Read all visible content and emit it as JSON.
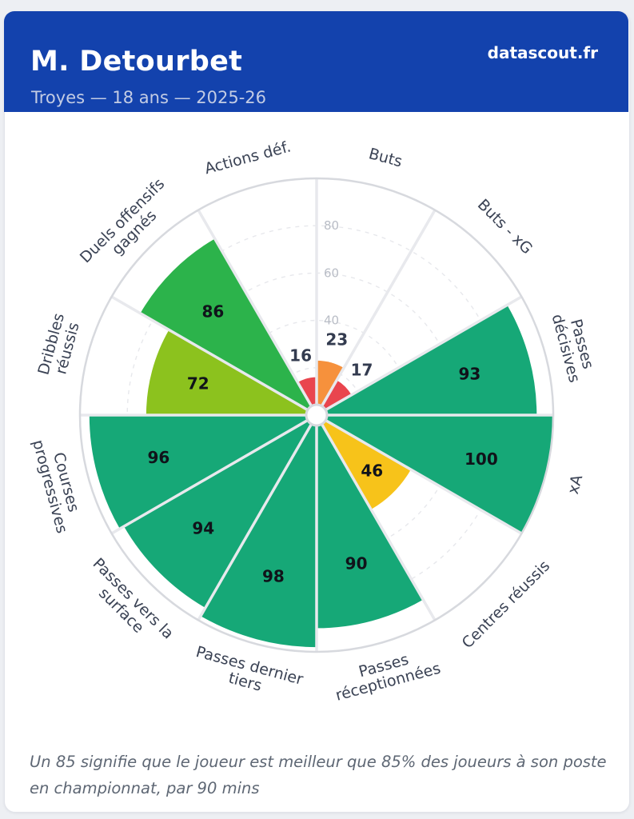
{
  "header": {
    "title": "M. Detourbet",
    "subtitle": "Troyes — 18 ans — 2025-26",
    "brand": "datascout.fr",
    "background_color": "#1342ad"
  },
  "footer": {
    "note": "Un 85 signifie que le joueur est meilleur que 85% des joueurs à son poste en championnat, par 90 mins"
  },
  "chart_data": {
    "type": "pizza",
    "description": "Percentile pizza (polar bar) chart with 12 equal 30-degree sectors, radial scale 0-100, grid dashed, no legend",
    "axis_max": 100,
    "tick_labels": [
      40,
      60,
      80
    ],
    "grid_rings": [
      20,
      40,
      60,
      80
    ],
    "legend_position": "none",
    "categories": [
      "Buts",
      "Buts - xG",
      "Passes décisives",
      "xA",
      "Centres réussis",
      "Passes réceptionnées",
      "Passes dernier tiers",
      "Passes vers la surface",
      "Courses progressives",
      "Dribbles réussis",
      "Duels offensifs gagnés",
      "Actions déf."
    ],
    "values": [
      23,
      17,
      93,
      100,
      46,
      90,
      98,
      94,
      96,
      72,
      86,
      16
    ],
    "slices": [
      {
        "label": "Buts",
        "lines": [
          "Buts"
        ],
        "value": 23,
        "color": "#f6913c"
      },
      {
        "label": "Buts - xG",
        "lines": [
          "Buts - xG"
        ],
        "value": 17,
        "color": "#e9454e"
      },
      {
        "label": "Passes décisives",
        "lines": [
          "Passes",
          "décisives"
        ],
        "value": 93,
        "color": "#16a877"
      },
      {
        "label": "xA",
        "lines": [
          "xA"
        ],
        "value": 100,
        "color": "#16a877"
      },
      {
        "label": "Centres réussis",
        "lines": [
          "Centres réussis"
        ],
        "value": 46,
        "color": "#f7c31a"
      },
      {
        "label": "Passes réceptionnées",
        "lines": [
          "Passes",
          "réceptionnées"
        ],
        "value": 90,
        "color": "#16a877"
      },
      {
        "label": "Passes dernier tiers",
        "lines": [
          "Passes dernier",
          "tiers"
        ],
        "value": 98,
        "color": "#16a877"
      },
      {
        "label": "Passes vers la surface",
        "lines": [
          "Passes vers la",
          "surface"
        ],
        "value": 94,
        "color": "#16a877"
      },
      {
        "label": "Courses progressives",
        "lines": [
          "Courses",
          "progressives"
        ],
        "value": 96,
        "color": "#16a877"
      },
      {
        "label": "Dribbles réussis",
        "lines": [
          "Dribbles",
          "réussis"
        ],
        "value": 72,
        "color": "#8cc21e"
      },
      {
        "label": "Duels offensifs gagnés",
        "lines": [
          "Duels offensifs",
          "gagnés"
        ],
        "value": 86,
        "color": "#2cb34b"
      },
      {
        "label": "Actions déf.",
        "lines": [
          "Actions déf."
        ],
        "value": 16,
        "color": "#e9454e"
      }
    ],
    "style": {
      "grid_color": "#e7e8ec",
      "spoke_color": "#e8e9ed",
      "ring_color": "#d7d9de",
      "tick_color": "#b9bdc6",
      "category_color": "#3a4254",
      "value_color": "#10131a",
      "value_color_outside": "#333b4f"
    }
  }
}
